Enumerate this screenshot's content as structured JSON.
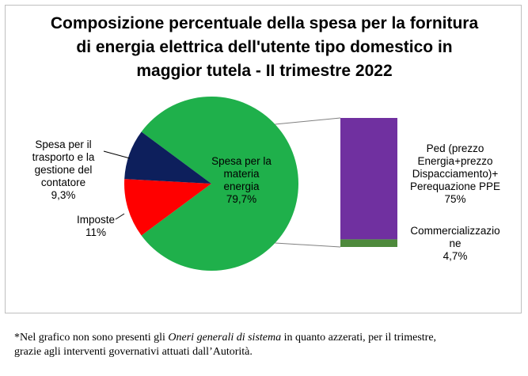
{
  "chart_data": {
    "type": "pie",
    "title": "Composizione percentuale della spesa per la fornitura di energia elettrica dell'utente tipo domestico in maggior tutela - II trimestre 2022",
    "slices": [
      {
        "label": "Spesa per la materia energia",
        "value": 79.7,
        "display": "79,7%",
        "color": "#1fb04b"
      },
      {
        "label": "Imposte",
        "value": 11.0,
        "display": "11%",
        "color": "#ff0000"
      },
      {
        "label": "Spesa per il trasporto e la gestione del contatore",
        "value": 9.3,
        "display": "9,3%",
        "color": "#0d1f5c"
      }
    ],
    "breakdown": {
      "of": "Spesa per la materia energia",
      "items": [
        {
          "label": "Ped (prezzo Energia+prezzo Dispacciamento)+ Perequazione PPE",
          "value": 75,
          "display": "75%",
          "color": "#7030a0"
        },
        {
          "label": "Commercializzazione",
          "value": 4.7,
          "display": "4,7%",
          "color": "#4e8a3c"
        }
      ]
    }
  },
  "labels": {
    "materia_line1": "Spesa per la",
    "materia_line2": "materia",
    "materia_line3": "energia",
    "materia_value": "79,7%",
    "trasporto_line1": "Spesa per il",
    "trasporto_line2": "trasporto e la",
    "trasporto_line3": "gestione del",
    "trasporto_line4": "contatore",
    "trasporto_value": "9,3%",
    "imposte_line1": "Imposte",
    "imposte_value": "11%",
    "ped_line1": "Ped (prezzo",
    "ped_line2": "Energia+prezzo",
    "ped_line3": "Dispacciamento)+",
    "ped_line4": "Perequazione PPE",
    "ped_value": "75%",
    "comm_line1": "Commercializzazio",
    "comm_line2": "ne",
    "comm_value": "4,7%"
  },
  "footnote": {
    "prefix": "*Nel grafico non sono presenti gli ",
    "emphasis": "Oneri generali di sistema",
    "suffix": " in quanto azzerati, per il trimestre,",
    "line2": "grazie agli interventi governativi attuati dall’Autorità."
  }
}
